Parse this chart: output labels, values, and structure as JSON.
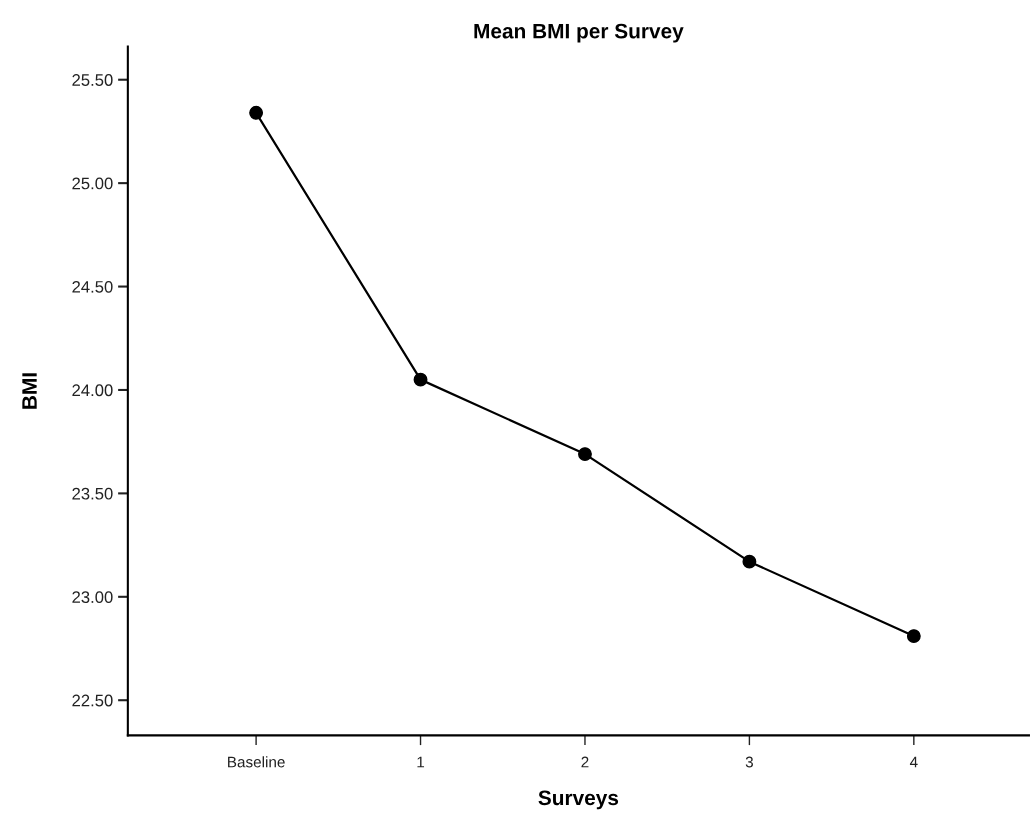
{
  "chart_data": {
    "type": "line",
    "title": "Mean BMI per Survey",
    "xlabel": "Surveys",
    "ylabel": "BMI",
    "categories": [
      "Baseline",
      "1",
      "2",
      "3",
      "4"
    ],
    "series": [
      {
        "color": "#000000",
        "values": [
          25.34,
          24.05,
          23.69,
          23.17,
          22.81
        ]
      }
    ],
    "ylim": [
      22.33,
      25.66
    ],
    "yticks": [
      {
        "value": 22.5,
        "label": "22.50"
      },
      {
        "value": 23.0,
        "label": "23.00"
      },
      {
        "value": 23.5,
        "label": "23.50"
      },
      {
        "value": 24.0,
        "label": "24.00"
      },
      {
        "value": 24.5,
        "label": "24.50"
      },
      {
        "value": 25.0,
        "label": "25.00"
      },
      {
        "value": 25.5,
        "label": "25.50"
      }
    ],
    "marker": "circle",
    "line_style": "solid",
    "grid": false,
    "legend": false
  }
}
